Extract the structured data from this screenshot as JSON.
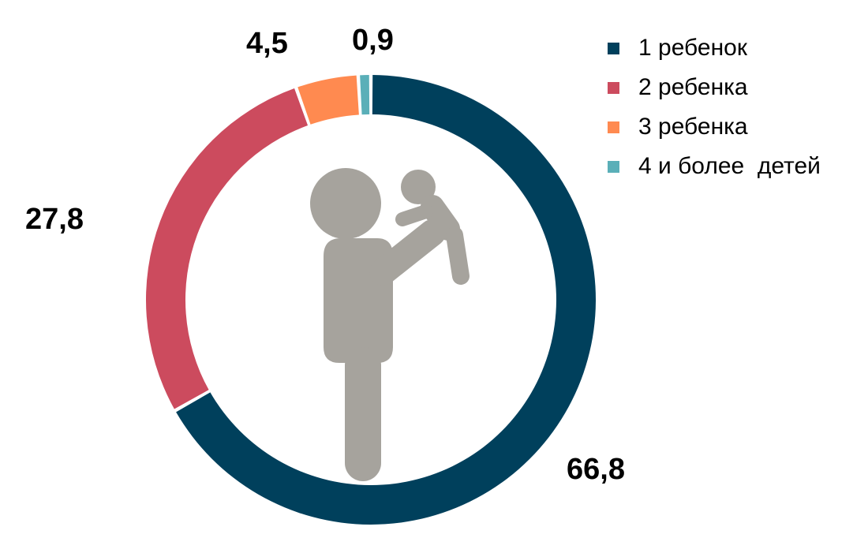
{
  "chart_data": {
    "type": "pie",
    "variant": "donut",
    "categories": [
      "1 ребенок",
      "2 ребенка",
      "3 ребенка",
      "4 и более  детей"
    ],
    "values": [
      66.8,
      27.8,
      4.5,
      0.9
    ],
    "value_labels": [
      "66,8",
      "27,8",
      "4,5",
      "0,9"
    ],
    "colors": [
      "#00405C",
      "#CC4B5E",
      "#FF8A50",
      "#5AAFB8"
    ],
    "start": "top",
    "direction": "clockwise",
    "legend_position": "top-right",
    "center_icon": "parent-holding-child-icon",
    "icon_color": "#A6A39D"
  }
}
